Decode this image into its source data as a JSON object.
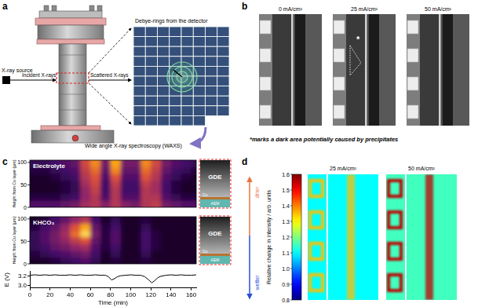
{
  "panels": {
    "a": {
      "letter": "a",
      "source": "X-ray source",
      "incident": "Incident X-rays",
      "scattered": "Scattered X-rays",
      "detector": "Debye-rings from the detector",
      "technique": "Wide angle X-ray spectroscopy (WAXS)"
    },
    "b": {
      "letter": "b",
      "images": [
        {
          "label": "0 mA/cm²"
        },
        {
          "label": "25 mA/cm²",
          "mark": "*"
        },
        {
          "label": "50 mA/cm²"
        }
      ],
      "caption": "*marks a dark area potentially caused by precipitates"
    },
    "c": {
      "letter": "c",
      "heatmaps": [
        {
          "title": "Electrolyte",
          "ylabel": "Height from Cu layer (µm)",
          "xlim": [
            0,
            165
          ],
          "ylim": [
            0,
            105
          ],
          "yticks": [
            0,
            50,
            100
          ],
          "x_edges": [
            0,
            10,
            20,
            30,
            40,
            50,
            60,
            70,
            80,
            90,
            100,
            110,
            120,
            130,
            140,
            150,
            160,
            165
          ],
          "y_edges": [
            0,
            15,
            30,
            45,
            60,
            75,
            90,
            105
          ],
          "cells": [
            [
              0.3,
              0.3,
              0.3,
              0.35,
              0.4,
              0.55,
              0.6,
              0.45,
              0.6,
              0.45,
              0.4,
              0.6,
              0.65,
              0.4,
              0.35,
              0.3,
              0.3
            ],
            [
              0.15,
              0.15,
              0.15,
              0.2,
              0.25,
              0.5,
              0.6,
              0.3,
              0.6,
              0.3,
              0.3,
              0.6,
              0.6,
              0.3,
              0.2,
              0.15,
              0.15
            ],
            [
              0.1,
              0.1,
              0.1,
              0.15,
              0.2,
              0.5,
              0.65,
              0.25,
              0.6,
              0.25,
              0.25,
              0.6,
              0.55,
              0.25,
              0.15,
              0.1,
              0.1
            ],
            [
              0.1,
              0.1,
              0.1,
              0.15,
              0.2,
              0.55,
              0.7,
              0.25,
              0.65,
              0.25,
              0.25,
              0.65,
              0.55,
              0.25,
              0.15,
              0.1,
              0.1
            ],
            [
              0.1,
              0.1,
              0.15,
              0.2,
              0.25,
              0.6,
              0.75,
              0.3,
              0.75,
              0.3,
              0.3,
              0.75,
              0.6,
              0.3,
              0.2,
              0.15,
              0.1
            ],
            [
              0.15,
              0.15,
              0.2,
              0.25,
              0.3,
              0.65,
              0.8,
              0.35,
              0.85,
              0.35,
              0.35,
              0.8,
              0.65,
              0.35,
              0.25,
              0.2,
              0.15
            ],
            [
              0.2,
              0.2,
              0.25,
              0.3,
              0.35,
              0.7,
              0.85,
              0.4,
              0.9,
              0.4,
              0.4,
              0.85,
              0.7,
              0.4,
              0.3,
              0.25,
              0.2
            ]
          ]
        },
        {
          "title": "KHCO₃",
          "ylabel": "Height from Cu layer (µm)",
          "xlim": [
            0,
            165
          ],
          "ylim": [
            0,
            105
          ],
          "yticks": [
            0,
            50,
            100
          ],
          "x_edges": [
            0,
            10,
            20,
            30,
            40,
            50,
            60,
            70,
            80,
            90,
            100,
            110,
            120,
            130,
            140,
            150,
            160,
            165
          ],
          "y_edges": [
            0,
            15,
            30,
            45,
            60,
            75,
            90,
            105
          ],
          "cells": [
            [
              0.1,
              0.1,
              0.15,
              0.2,
              0.25,
              0.3,
              0.2,
              0.1,
              0.15,
              0.1,
              0.1,
              0.15,
              0.1,
              0.1,
              0.1,
              0.1,
              0.1
            ],
            [
              0.15,
              0.2,
              0.25,
              0.3,
              0.35,
              0.4,
              0.25,
              0.1,
              0.2,
              0.1,
              0.1,
              0.2,
              0.1,
              0.1,
              0.1,
              0.1,
              0.1
            ],
            [
              0.2,
              0.25,
              0.35,
              0.4,
              0.5,
              0.55,
              0.3,
              0.15,
              0.25,
              0.1,
              0.1,
              0.25,
              0.15,
              0.1,
              0.1,
              0.1,
              0.1
            ],
            [
              0.2,
              0.3,
              0.4,
              0.5,
              0.65,
              0.75,
              0.35,
              0.15,
              0.3,
              0.1,
              0.1,
              0.25,
              0.15,
              0.1,
              0.1,
              0.1,
              0.1
            ],
            [
              0.2,
              0.3,
              0.4,
              0.55,
              0.8,
              0.95,
              0.4,
              0.15,
              0.3,
              0.1,
              0.1,
              0.25,
              0.15,
              0.1,
              0.1,
              0.1,
              0.1
            ],
            [
              0.15,
              0.25,
              0.35,
              0.5,
              0.75,
              0.9,
              0.35,
              0.15,
              0.25,
              0.1,
              0.1,
              0.2,
              0.1,
              0.1,
              0.1,
              0.1,
              0.1
            ],
            [
              0.1,
              0.15,
              0.25,
              0.35,
              0.5,
              0.6,
              0.25,
              0.1,
              0.2,
              0.1,
              0.1,
              0.15,
              0.1,
              0.1,
              0.1,
              0.1,
              0.1
            ]
          ]
        }
      ],
      "schematic": {
        "electrode": "GDE",
        "layer": "Cu",
        "membrane": "AEM"
      }
    },
    "d": {
      "letter": "d",
      "colorbar": {
        "label": "Relative change in intensity / arb. units",
        "range": [
          0.8,
          1.6
        ],
        "ticks": [
          0.8,
          0.9,
          {
            "value": 1,
            "label": "1.0"
          },
          1.1,
          1.2,
          1.3,
          1.4,
          1.5,
          1.6
        ],
        "upper": "drier",
        "lower": "wetter"
      },
      "images": [
        {
          "label": "25 mA/cm²",
          "background": 1.1,
          "features": 1.35
        },
        {
          "label": "50 mA/cm²",
          "background": 1.15,
          "features": 1.55
        }
      ]
    }
  },
  "chart_data": {
    "type": "line",
    "xlabel": "Time (min)",
    "ylabel": "E (V)",
    "color": "#000000",
    "grid": false,
    "x": [
      0,
      5,
      10,
      15,
      20,
      25,
      30,
      35,
      40,
      45,
      50,
      55,
      60,
      65,
      70,
      75,
      78,
      81,
      84,
      87,
      90,
      95,
      100,
      105,
      110,
      114,
      118,
      121,
      124,
      127,
      130,
      135,
      140,
      145,
      150,
      155,
      160,
      165
    ],
    "values": [
      3.22,
      3.23,
      3.22,
      3.23,
      3.22,
      3.23,
      3.22,
      3.22,
      3.23,
      3.22,
      3.23,
      3.22,
      3.22,
      3.23,
      3.22,
      3.22,
      3.19,
      3.12,
      3.15,
      3.19,
      3.21,
      3.22,
      3.23,
      3.22,
      3.22,
      3.19,
      3.12,
      3.06,
      3.11,
      3.17,
      3.2,
      3.22,
      3.23,
      3.22,
      3.23,
      3.22,
      3.22,
      3.23
    ],
    "xlim": [
      0,
      165
    ],
    "xticks": [
      0,
      20,
      40,
      60,
      80,
      100,
      120,
      140,
      160
    ],
    "ylim": [
      2.95,
      3.3
    ],
    "yticks": [
      {
        "value": 3,
        "label": "3.0"
      },
      3.2
    ]
  }
}
